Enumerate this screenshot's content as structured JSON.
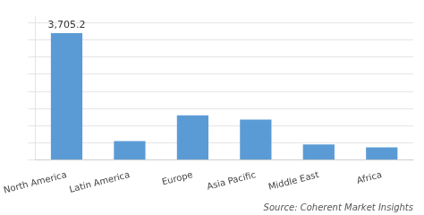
{
  "chart_data": {
    "type": "bar",
    "categories": [
      "North America",
      "Latin America",
      "Europe",
      "Asia Pacific",
      "Middle East",
      "Africa"
    ],
    "values": [
      3705.2,
      550,
      1300,
      1180,
      450,
      370
    ],
    "color": "#5b9bd5",
    "ylim": [
      0,
      4200
    ],
    "yticks": [
      0,
      500,
      1000,
      1500,
      2000,
      2500,
      3000,
      3500,
      4000
    ],
    "grid": true,
    "tick_labels": "x",
    "annotations": [
      {
        "text": "3,705.2",
        "category": "North America",
        "value": 3705.2
      }
    ],
    "source": "Source: Coherent Market Insights"
  }
}
